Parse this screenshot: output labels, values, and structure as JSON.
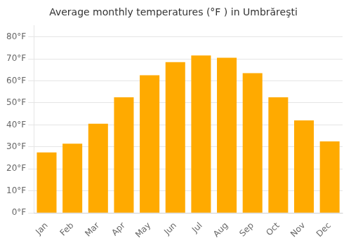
{
  "chart_data": {
    "type": "bar",
    "title": "Average monthly temperatures (°F ) in Umbrăreşti",
    "categories": [
      "Jan",
      "Feb",
      "Mar",
      "Apr",
      "May",
      "Jun",
      "Jul",
      "Aug",
      "Sep",
      "Oct",
      "Nov",
      "Dec"
    ],
    "values": [
      27.5,
      31.5,
      40.5,
      52.5,
      62.5,
      68.5,
      71.5,
      70.5,
      63.5,
      52.5,
      42.0,
      32.5
    ],
    "color": "#FFAA00",
    "ylim": [
      0,
      85
    ],
    "yticks": [
      {
        "value": 0,
        "label": "0°F"
      },
      {
        "value": 10,
        "label": "10°F"
      },
      {
        "value": 20,
        "label": "20°F"
      },
      {
        "value": 30,
        "label": "30°F"
      },
      {
        "value": 40,
        "label": "40°F"
      },
      {
        "value": 50,
        "label": "50°F"
      },
      {
        "value": 60,
        "label": "60°F"
      },
      {
        "value": 70,
        "label": "70°F"
      },
      {
        "value": 80,
        "label": "80°F"
      }
    ],
    "grid": true
  }
}
